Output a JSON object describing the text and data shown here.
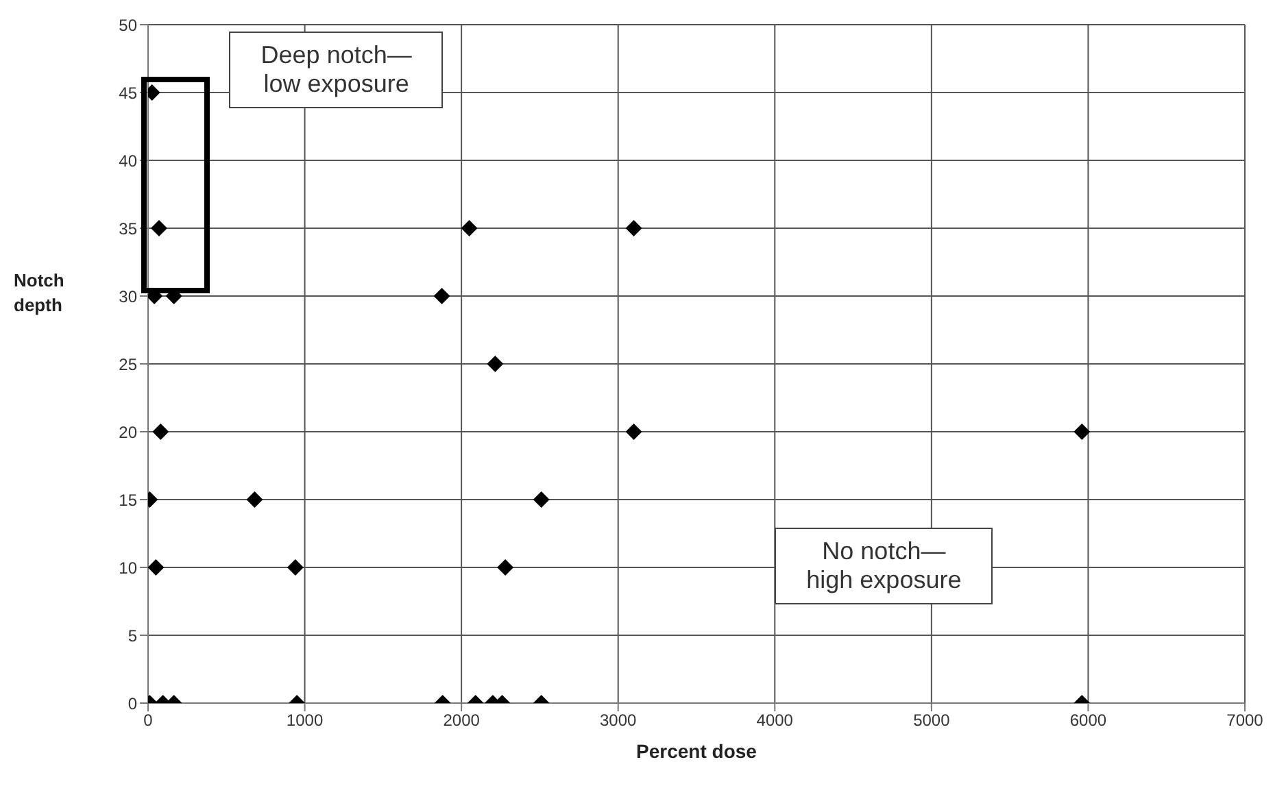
{
  "chart_data": {
    "type": "scatter",
    "xlabel": "Percent dose",
    "ylabel": "Notch depth",
    "x": [
      25,
      70,
      2050,
      3100,
      40,
      165,
      1875,
      2215,
      80,
      3100,
      5960,
      10,
      680,
      2510,
      50,
      940,
      2280,
      10,
      95,
      165,
      950,
      1880,
      2090,
      2200,
      2260,
      2510,
      5960
    ],
    "series": [
      {
        "color": "#000000",
        "values": [
          45,
          35,
          35,
          35,
          30,
          30,
          30,
          25,
          20,
          20,
          20,
          15,
          15,
          15,
          10,
          10,
          10,
          0,
          0,
          0,
          0,
          0,
          0,
          0,
          0,
          0,
          0
        ]
      }
    ],
    "xlim": [
      0,
      7000
    ],
    "xticks": [
      0,
      1000,
      2000,
      3000,
      4000,
      5000,
      6000,
      7000
    ],
    "ylim": [
      0,
      50
    ],
    "yticks": [
      0,
      5,
      10,
      15,
      20,
      25,
      30,
      35,
      40,
      45,
      50
    ],
    "grid": true,
    "marker": "diamond",
    "annotations": [
      "Deep notch—\nlow exposure",
      "No notch—\nhigh exposure"
    ]
  }
}
